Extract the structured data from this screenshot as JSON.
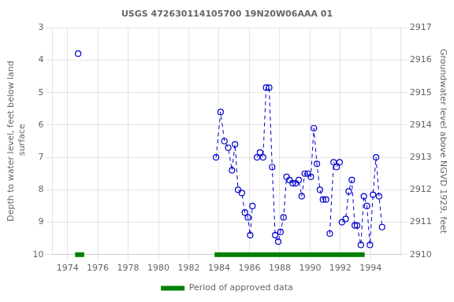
{
  "chart_data": {
    "type": "line",
    "title": "USGS 472630114105700 19N20W06AAA 01",
    "ylabel": "Depth to water level, feet below land\n surface",
    "y2label": "Groundwater level above NGVD 1929, feet",
    "xlim": [
      1973,
      1996
    ],
    "xticks": [
      1974,
      1976,
      1978,
      1980,
      1982,
      1984,
      1986,
      1988,
      1990,
      1992,
      1994
    ],
    "ylim": [
      10.0,
      3.0
    ],
    "yticks": [
      3.0,
      4.0,
      5.0,
      6.0,
      7.0,
      8.0,
      9.0,
      10.0
    ],
    "y2lim": [
      2910.0,
      2917.0
    ],
    "y2ticks": [
      2910.0,
      2911.0,
      2912.0,
      2913.0,
      2914.0,
      2915.0,
      2916.0,
      2917.0
    ],
    "grid": true,
    "legend": "bottom",
    "series": [
      {
        "color": "#0000cc",
        "marker": "open_circle",
        "line_style": "dashed",
        "x": [
          1974.7
        ],
        "values": [
          3.8
        ]
      },
      {
        "color": "#0000cc",
        "marker": "open_circle",
        "line_style": "dashed",
        "x": [
          1983.8,
          1984.1,
          1984.35,
          1984.6,
          1984.85,
          1985.05,
          1985.25,
          1985.5,
          1985.7,
          1985.9,
          1986.05,
          1986.2
        ],
        "values": [
          7.0,
          5.6,
          6.5,
          6.7,
          7.4,
          6.6,
          8.0,
          8.1,
          8.7,
          8.85,
          9.4,
          8.5
        ]
      },
      {
        "color": "#0000cc",
        "marker": "open_circle",
        "line_style": "dashed",
        "x": [
          1986.5,
          1986.7,
          1986.9,
          1987.1,
          1987.3,
          1987.5,
          1987.7,
          1987.9,
          1988.05,
          1988.25,
          1988.45
        ],
        "values": [
          7.0,
          6.85,
          7.0,
          4.85,
          4.85,
          7.3,
          9.4,
          9.6,
          9.3,
          8.85,
          7.6
        ]
      },
      {
        "color": "#0000cc",
        "marker": "open_circle",
        "line_style": "dashed",
        "x": [
          1988.65,
          1988.85,
          1989.05,
          1989.25,
          1989.45,
          1989.65,
          1989.85,
          1990.05,
          1990.25,
          1990.45,
          1990.65,
          1990.85,
          1991.05
        ],
        "values": [
          7.7,
          7.8,
          7.8,
          7.7,
          8.2,
          7.5,
          7.5,
          7.6,
          6.1,
          7.2,
          8.0,
          8.3,
          8.3
        ]
      },
      {
        "color": "#0000cc",
        "marker": "open_circle",
        "line_style": "dashed",
        "x": [
          1991.3,
          1991.55,
          1991.75,
          1991.95
        ],
        "values": [
          9.35,
          7.15,
          7.3,
          7.15
        ]
      },
      {
        "color": "#0000cc",
        "marker": "open_circle",
        "line_style": "dashed",
        "x": [
          1992.1,
          1992.35,
          1992.55,
          1992.75,
          1992.95
        ],
        "values": [
          9.0,
          8.9,
          8.05,
          7.7,
          9.1
        ]
      },
      {
        "color": "#0000cc",
        "marker": "open_circle",
        "line_style": "dashed",
        "x": [
          1993.1,
          1993.35,
          1993.55,
          1993.75,
          1993.95,
          1994.15,
          1994.35,
          1994.55,
          1994.75
        ],
        "values": [
          9.1,
          9.7,
          8.2,
          8.5,
          9.7,
          8.15,
          7.0,
          8.2,
          9.15
        ]
      },
      {
        "name": "Period of approved data",
        "type": "span",
        "color": "#008000",
        "ranges": [
          [
            1974.5,
            1975.1
          ],
          [
            1983.7,
            1993.6
          ]
        ]
      }
    ]
  }
}
